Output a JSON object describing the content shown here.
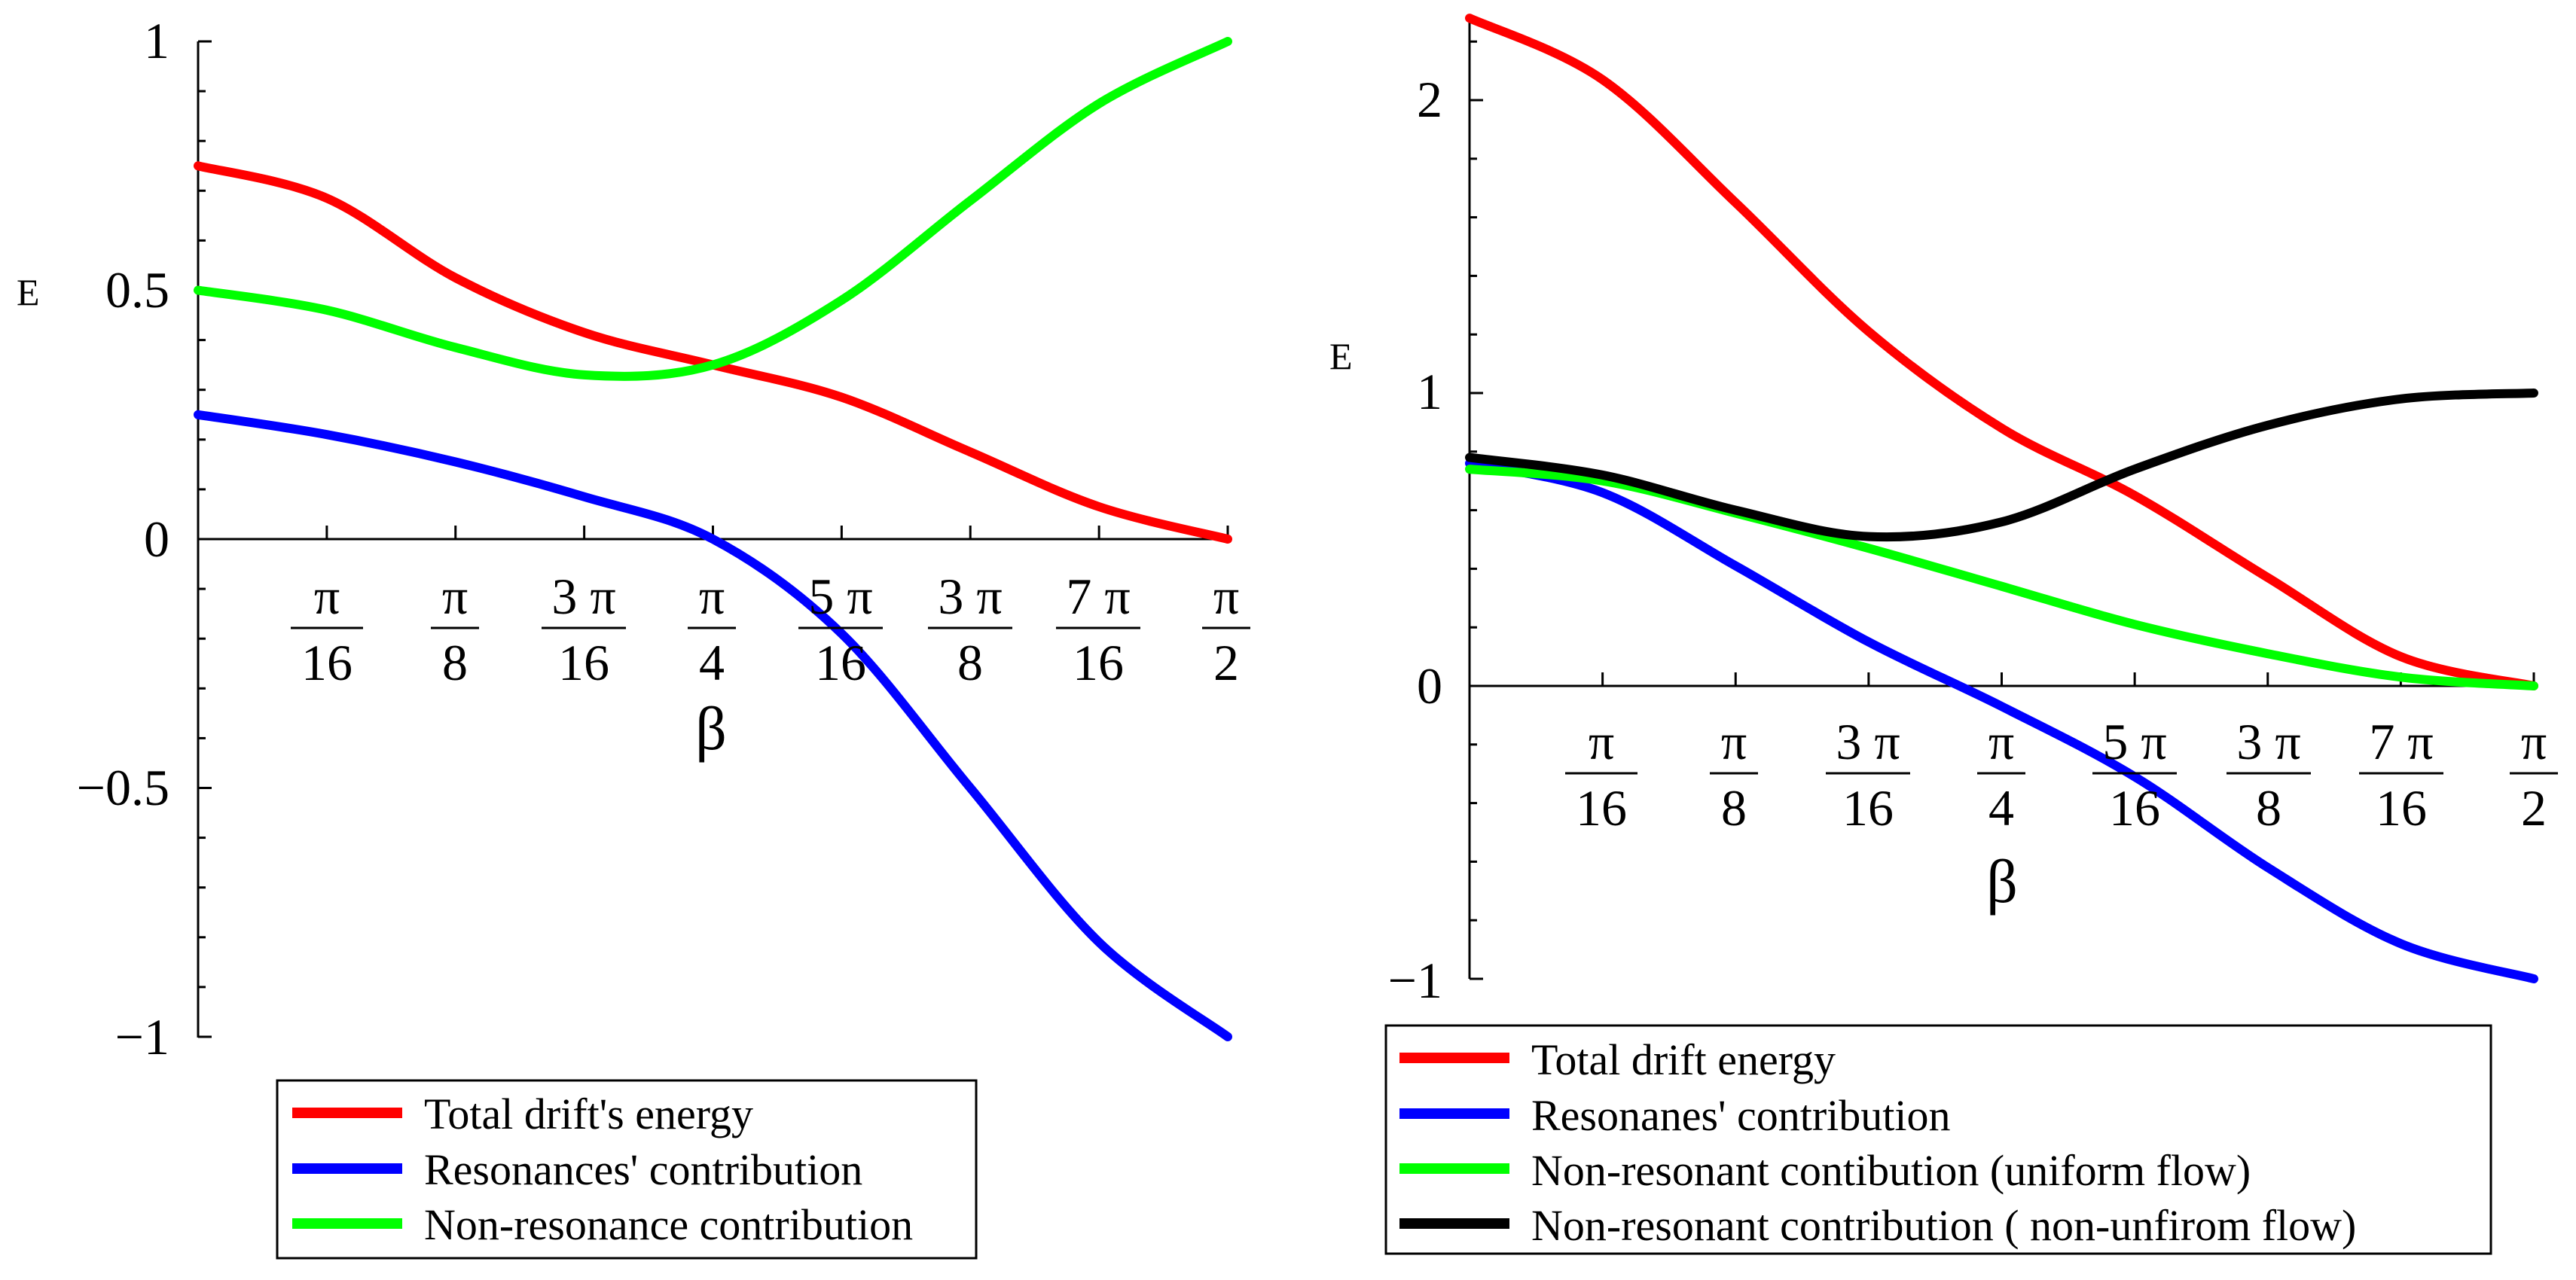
{
  "chart_data": [
    {
      "type": "line",
      "xlabel": "β",
      "ylabel": "E",
      "xlim": [
        0,
        1.5708
      ],
      "ylim": [
        -1,
        1
      ],
      "x_ticks": [
        {
          "num": "π",
          "den": "16",
          "value": 0.19635
        },
        {
          "num": "π",
          "den": "8",
          "value": 0.3927
        },
        {
          "num": "3 π",
          "den": "16",
          "value": 0.58905
        },
        {
          "num": "π",
          "den": "4",
          "value": 0.7854
        },
        {
          "num": "5 π",
          "den": "16",
          "value": 0.98175
        },
        {
          "num": "3 π",
          "den": "8",
          "value": 1.1781
        },
        {
          "num": "7 π",
          "den": "16",
          "value": 1.37445
        },
        {
          "num": "π",
          "den": "2",
          "value": 1.5708
        }
      ],
      "y_ticks": [
        {
          "label": "1",
          "value": 1
        },
        {
          "label": "0.5",
          "value": 0.5
        },
        {
          "label": "0",
          "value": 0
        },
        {
          "label": "−0.5",
          "value": -0.5
        },
        {
          "label": "−1",
          "value": -1
        }
      ],
      "x": [
        0,
        0.19635,
        0.3927,
        0.58905,
        0.7854,
        0.98175,
        1.1781,
        1.37445,
        1.5708
      ],
      "series": [
        {
          "name": "Total drift's energy",
          "color": "#ff0000",
          "values": [
            0.75,
            0.685,
            0.525,
            0.415,
            0.35,
            0.285,
            0.175,
            0.065,
            0
          ]
        },
        {
          "name": "Resonances' contribution",
          "color": "#0000ff",
          "values": [
            0.25,
            0.21,
            0.155,
            0.085,
            0.0,
            -0.19,
            -0.5,
            -0.81,
            -1
          ]
        },
        {
          "name": "Non-resonance contribution",
          "color": "#00ff00",
          "values": [
            0.5,
            0.46,
            0.385,
            0.33,
            0.35,
            0.48,
            0.68,
            0.875,
            1
          ]
        }
      ]
    },
    {
      "type": "line",
      "xlabel": "β",
      "ylabel": "E",
      "xlim": [
        0,
        1.5708
      ],
      "ylim": [
        -1,
        2.3
      ],
      "x_ticks": [
        {
          "num": "π",
          "den": "16",
          "value": 0.19635
        },
        {
          "num": "π",
          "den": "8",
          "value": 0.3927
        },
        {
          "num": "3 π",
          "den": "16",
          "value": 0.58905
        },
        {
          "num": "π",
          "den": "4",
          "value": 0.7854
        },
        {
          "num": "5 π",
          "den": "16",
          "value": 0.98175
        },
        {
          "num": "3 π",
          "den": "8",
          "value": 1.1781
        },
        {
          "num": "7 π",
          "den": "16",
          "value": 1.37445
        },
        {
          "num": "π",
          "den": "2",
          "value": 1.5708
        }
      ],
      "y_ticks": [
        {
          "label": "2",
          "value": 2
        },
        {
          "label": "1",
          "value": 1
        },
        {
          "label": "0",
          "value": 0
        },
        {
          "label": "−1",
          "value": -1
        }
      ],
      "x": [
        0,
        0.19635,
        0.3927,
        0.58905,
        0.7854,
        0.98175,
        1.1781,
        1.37445,
        1.5708
      ],
      "series": [
        {
          "name": "Total  drift energy",
          "color": "#ff0000",
          "values": [
            2.28,
            2.07,
            1.65,
            1.21,
            0.88,
            0.65,
            0.37,
            0.1,
            0
          ]
        },
        {
          "name": "Resonanes' contribution",
          "color": "#0000ff",
          "values": [
            0.76,
            0.66,
            0.41,
            0.15,
            -0.07,
            -0.31,
            -0.62,
            -0.88,
            -1
          ]
        },
        {
          "name": "Non-resonant contibution (uniform flow)",
          "color": "#00ff00",
          "values": [
            0.74,
            0.7,
            0.59,
            0.47,
            0.34,
            0.21,
            0.11,
            0.03,
            0
          ]
        },
        {
          "name": " Non-resonant  contribution  ( non-unfirom flow)",
          "color": "#000000",
          "values": [
            0.78,
            0.72,
            0.6,
            0.51,
            0.56,
            0.74,
            0.89,
            0.98,
            1
          ]
        }
      ]
    }
  ]
}
